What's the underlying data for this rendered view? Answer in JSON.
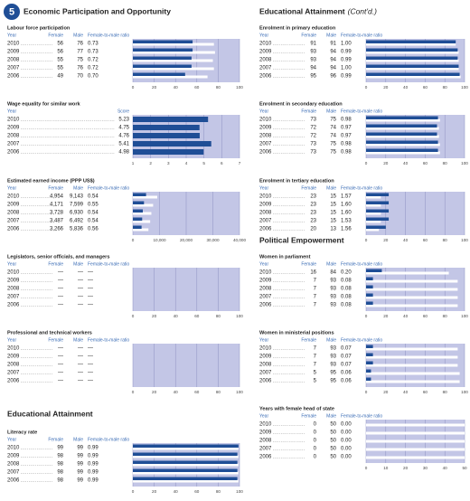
{
  "badge": "5",
  "left": [
    {
      "heading": "Economic Participation and Opportunity"
    },
    {
      "title": "Labour force participation",
      "columns": [
        "Year",
        "Female",
        "Male",
        "Female-to-male ratio"
      ],
      "years": [
        2010,
        2009,
        2008,
        2007,
        2006
      ],
      "female": [
        56,
        56,
        55,
        55,
        49
      ],
      "male": [
        76,
        77,
        75,
        76,
        70
      ],
      "ratio": [
        "0.73",
        "0.73",
        "0.72",
        "0.72",
        "0.70"
      ],
      "xlim": [
        0,
        100
      ],
      "xticks": [
        0,
        20,
        40,
        60,
        80,
        100
      ]
    },
    {
      "title": "Wage equality for similar work",
      "columns": [
        "Year",
        "Score"
      ],
      "years": [
        2010,
        2009,
        2008,
        2007,
        2006
      ],
      "score": [
        5.23,
        4.75,
        4.76,
        5.41,
        4.98
      ],
      "xlim": [
        1,
        7
      ],
      "xticks": [
        1,
        2,
        3,
        4,
        5,
        6,
        7
      ]
    },
    {
      "title": "Estimated earned income (PPP US$)",
      "columns": [
        "Year",
        "Female",
        "Male",
        "Female-to-male ratio"
      ],
      "years": [
        2010,
        2009,
        2008,
        2007,
        2006
      ],
      "female": [
        4954,
        4171,
        3728,
        3487,
        3266
      ],
      "female_labels": [
        "4,954",
        "4,171",
        "3,728",
        "3,487",
        "3,266"
      ],
      "male": [
        9143,
        7599,
        6930,
        6492,
        5836
      ],
      "male_labels": [
        "9,143",
        "7,599",
        "6,930",
        "6,492",
        "5,836"
      ],
      "ratio": [
        "0.54",
        "0.55",
        "0.54",
        "0.54",
        "0.56"
      ],
      "xlim": [
        0,
        40000
      ],
      "xticks": [
        0,
        {
          "value": 10000,
          "label": "10,000"
        },
        {
          "value": 20000,
          "label": "20,000"
        },
        {
          "value": 30000,
          "label": "30,000"
        },
        {
          "value": 40000,
          "label": "40,000"
        }
      ]
    },
    {
      "title": "Legislators, senior officials, and managers",
      "columns": [
        "Year",
        "Female",
        "Male",
        "Female-to-male ratio"
      ],
      "years": [
        2010,
        2009,
        2008,
        2007,
        2006
      ],
      "female": [
        "—",
        "—",
        "—",
        "—",
        "—"
      ],
      "male": [
        "—",
        "—",
        "—",
        "—",
        "—"
      ],
      "ratio": [
        "—",
        "—",
        "—",
        "—",
        "—"
      ],
      "xlim": [
        0,
        100
      ],
      "xticks": [
        0,
        20,
        40,
        60,
        80,
        100
      ]
    },
    {
      "title": "Professional and technical workers",
      "columns": [
        "Year",
        "Female",
        "Male",
        "Female-to-male ratio"
      ],
      "years": [
        2010,
        2009,
        2008,
        2007,
        2006
      ],
      "female": [
        "—",
        "—",
        "—",
        "—",
        "—"
      ],
      "male": [
        "—",
        "—",
        "—",
        "—",
        "—"
      ],
      "ratio": [
        "—",
        "—",
        "—",
        "—",
        "—"
      ],
      "xlim": [
        0,
        100
      ],
      "xticks": [
        0,
        20,
        40,
        60,
        80,
        100
      ]
    },
    {
      "heading": "Educational Attainment"
    },
    {
      "title": "Literacy rate",
      "columns": [
        "Year",
        "Female",
        "Male",
        "Female-to-male ratio"
      ],
      "years": [
        2010,
        2009,
        2008,
        2007,
        2006
      ],
      "female": [
        99,
        98,
        98,
        98,
        98
      ],
      "male": [
        99,
        99,
        99,
        99,
        99
      ],
      "ratio": [
        "0.99",
        "0.99",
        "0.99",
        "0.99",
        "0.99"
      ],
      "xlim": [
        0,
        100
      ],
      "xticks": [
        0,
        20,
        40,
        60,
        80,
        100
      ]
    }
  ],
  "right": [
    {
      "heading": "Educational Attainment",
      "note": "(Cont'd.)"
    },
    {
      "title": "Enrolment in primary education",
      "columns": [
        "Year",
        "Female",
        "Male",
        "Female-to-male ratio"
      ],
      "years": [
        2010,
        2009,
        2008,
        2007,
        2006
      ],
      "female": [
        91,
        93,
        93,
        94,
        95
      ],
      "male": [
        91,
        94,
        94,
        94,
        96
      ],
      "ratio": [
        "1.00",
        "0.99",
        "0.99",
        "1.00",
        "0.99"
      ],
      "xlim": [
        0,
        100
      ],
      "xticks": [
        0,
        20,
        40,
        60,
        80,
        100
      ]
    },
    {
      "title": "Enrolment in secondary education",
      "columns": [
        "Year",
        "Female",
        "Male",
        "Female-to-male ratio"
      ],
      "years": [
        2010,
        2009,
        2008,
        2007,
        2006
      ],
      "female": [
        73,
        72,
        72,
        73,
        73
      ],
      "male": [
        75,
        74,
        74,
        75,
        75
      ],
      "ratio": [
        "0.98",
        "0.97",
        "0.97",
        "0.98",
        "0.98"
      ],
      "xlim": [
        0,
        100
      ],
      "xticks": [
        0,
        20,
        40,
        60,
        80,
        100
      ]
    },
    {
      "title": "Enrolment in tertiary education",
      "columns": [
        "Year",
        "Female",
        "Male",
        "Female-to-male ratio"
      ],
      "years": [
        2010,
        2009,
        2008,
        2007,
        2006
      ],
      "female": [
        23,
        23,
        23,
        23,
        20
      ],
      "male": [
        15,
        15,
        15,
        15,
        13
      ],
      "ratio": [
        "1.57",
        "1.60",
        "1.60",
        "1.53",
        "1.56"
      ],
      "xlim": [
        0,
        100
      ],
      "xticks": [
        0,
        20,
        40,
        60,
        80,
        100
      ]
    },
    {
      "heading": "Political Empowerment"
    },
    {
      "title": "Women in parliament",
      "columns": [
        "Year",
        "Female",
        "Male",
        "Female-to-male ratio"
      ],
      "years": [
        2010,
        2009,
        2008,
        2007,
        2006
      ],
      "female": [
        16,
        7,
        7,
        7,
        7
      ],
      "male": [
        84,
        93,
        93,
        93,
        93
      ],
      "ratio": [
        "0.20",
        "0.08",
        "0.08",
        "0.08",
        "0.08"
      ],
      "xlim": [
        0,
        100
      ],
      "xticks": [
        0,
        20,
        40,
        60,
        80,
        100
      ]
    },
    {
      "title": "Women in ministerial positions",
      "columns": [
        "Year",
        "Female",
        "Male",
        "Female-to-male ratio"
      ],
      "years": [
        2010,
        2009,
        2008,
        2007,
        2006
      ],
      "female": [
        7,
        7,
        7,
        5,
        5
      ],
      "male": [
        93,
        93,
        93,
        95,
        95
      ],
      "ratio": [
        "0.07",
        "0.07",
        "0.07",
        "0.06",
        "0.06"
      ],
      "xlim": [
        0,
        100
      ],
      "xticks": [
        0,
        20,
        40,
        60,
        80,
        100
      ]
    },
    {
      "title": "Years with female head of state",
      "columns": [
        "Year",
        "Female",
        "Male",
        "Female-to-male ratio"
      ],
      "years": [
        2010,
        2009,
        2008,
        2007,
        2006
      ],
      "female": [
        0,
        0,
        0,
        0,
        0
      ],
      "male": [
        50,
        50,
        50,
        50,
        50
      ],
      "ratio": [
        "0.00",
        "0.00",
        "0.00",
        "0.00",
        "0.00"
      ],
      "xlim": [
        0,
        50
      ],
      "xticks": [
        0,
        10,
        20,
        30,
        40,
        50
      ]
    }
  ]
}
